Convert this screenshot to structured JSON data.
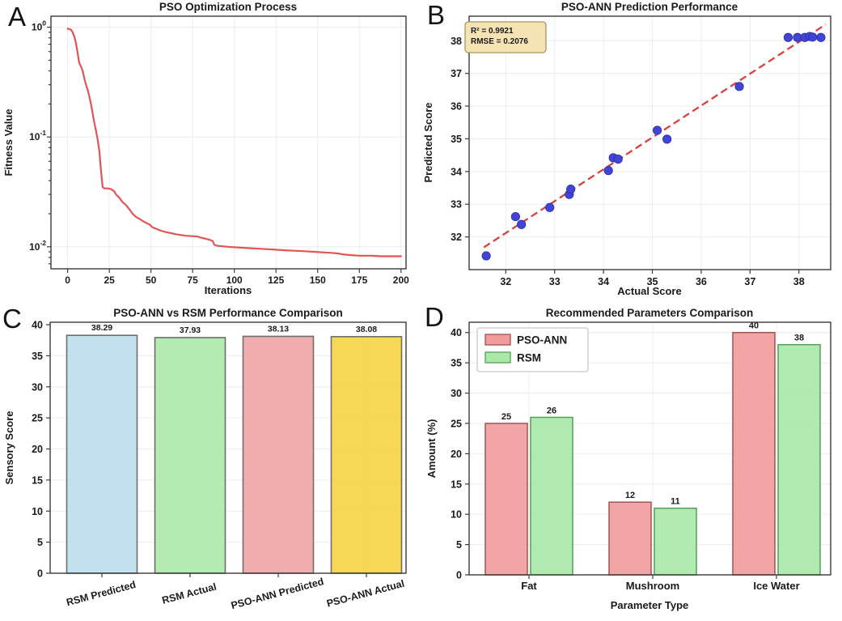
{
  "figure": {
    "background": "#ffffff",
    "panel_letters": [
      "A",
      "B",
      "C",
      "D"
    ]
  },
  "chart_data": [
    {
      "panel_letter": "A",
      "type": "line",
      "title": "PSO Optimization Process",
      "xlabel": "Iterations",
      "ylabel": "Fitness Value",
      "yscale": "log",
      "xlim": [
        -10,
        203
      ],
      "ylim": [
        0.0063,
        1.26
      ],
      "xticks": [
        0,
        25,
        50,
        75,
        100,
        125,
        150,
        175,
        200
      ],
      "yticks": [
        1,
        0.1,
        0.01
      ],
      "ytick_exponents": [
        "0",
        "-1",
        "-2"
      ],
      "line_color": "#e05555",
      "grid": true,
      "points": [
        [
          0,
          0.97
        ],
        [
          1,
          0.96
        ],
        [
          2,
          0.95
        ],
        [
          3,
          0.9
        ],
        [
          4,
          0.82
        ],
        [
          5,
          0.72
        ],
        [
          6,
          0.58
        ],
        [
          7,
          0.47
        ],
        [
          8,
          0.44
        ],
        [
          9,
          0.4
        ],
        [
          10,
          0.345
        ],
        [
          11,
          0.3
        ],
        [
          12,
          0.27
        ],
        [
          13,
          0.235
        ],
        [
          14,
          0.2
        ],
        [
          15,
          0.165
        ],
        [
          16,
          0.135
        ],
        [
          17,
          0.115
        ],
        [
          18,
          0.095
        ],
        [
          19,
          0.075
        ],
        [
          20,
          0.05
        ],
        [
          21,
          0.035
        ],
        [
          22,
          0.034
        ],
        [
          24,
          0.034
        ],
        [
          26,
          0.0335
        ],
        [
          28,
          0.032
        ],
        [
          29,
          0.03
        ],
        [
          31,
          0.028
        ],
        [
          33,
          0.0255
        ],
        [
          35,
          0.024
        ],
        [
          37,
          0.022
        ],
        [
          39,
          0.02
        ],
        [
          41,
          0.0187
        ],
        [
          43,
          0.018
        ],
        [
          45,
          0.0172
        ],
        [
          47,
          0.0165
        ],
        [
          49,
          0.016
        ],
        [
          51,
          0.015
        ],
        [
          53,
          0.0146
        ],
        [
          56,
          0.014
        ],
        [
          59,
          0.0136
        ],
        [
          62,
          0.0133
        ],
        [
          65,
          0.013
        ],
        [
          68,
          0.0128
        ],
        [
          71,
          0.0126
        ],
        [
          75,
          0.0125
        ],
        [
          78,
          0.0124
        ],
        [
          80,
          0.0121
        ],
        [
          83,
          0.0118
        ],
        [
          85,
          0.0116
        ],
        [
          87,
          0.0113
        ],
        [
          88,
          0.0104
        ],
        [
          90,
          0.0102
        ],
        [
          93,
          0.0101
        ],
        [
          96,
          0.01
        ],
        [
          100,
          0.0099
        ],
        [
          105,
          0.0098
        ],
        [
          110,
          0.0097
        ],
        [
          115,
          0.0096
        ],
        [
          120,
          0.0095
        ],
        [
          125,
          0.0094
        ],
        [
          130,
          0.0093
        ],
        [
          136,
          0.0092
        ],
        [
          142,
          0.0091
        ],
        [
          148,
          0.009
        ],
        [
          153,
          0.0089
        ],
        [
          158,
          0.0088
        ],
        [
          162,
          0.0087
        ],
        [
          166,
          0.0085
        ],
        [
          170,
          0.0084
        ],
        [
          175,
          0.0083
        ],
        [
          182,
          0.0083
        ],
        [
          188,
          0.0082
        ],
        [
          194,
          0.0082
        ],
        [
          200,
          0.0082
        ]
      ]
    },
    {
      "panel_letter": "B",
      "type": "scatter",
      "title": "PSO-ANN Prediction Performance",
      "xlabel": "Actual Score",
      "ylabel": "Predicted Score",
      "xlim": [
        31.25,
        38.65
      ],
      "ylim": [
        31.0,
        38.75
      ],
      "xticks": [
        32,
        33,
        34,
        35,
        36,
        37,
        38
      ],
      "yticks": [
        32,
        33,
        34,
        35,
        36,
        37,
        38
      ],
      "grid": true,
      "point_color": "#4144d4",
      "point_edge_color": "#2e31a8",
      "points": [
        [
          31.6,
          31.42
        ],
        [
          32.2,
          32.62
        ],
        [
          32.32,
          32.38
        ],
        [
          32.9,
          32.9
        ],
        [
          33.3,
          33.3
        ],
        [
          33.33,
          33.46
        ],
        [
          34.1,
          34.03
        ],
        [
          34.2,
          34.42
        ],
        [
          34.3,
          34.38
        ],
        [
          35.1,
          35.26
        ],
        [
          35.3,
          34.99
        ],
        [
          36.78,
          36.6
        ],
        [
          37.78,
          38.1
        ],
        [
          37.97,
          38.1
        ],
        [
          38.12,
          38.1
        ],
        [
          38.22,
          38.13
        ],
        [
          38.28,
          38.11
        ],
        [
          38.45,
          38.1
        ]
      ],
      "fit_line": {
        "x": [
          31.55,
          38.55
        ],
        "y": [
          31.68,
          38.5
        ],
        "color": "#d84040",
        "style": "dashed"
      },
      "annotation": {
        "lines": [
          "R² = 0.9921",
          "RMSE = 0.2076"
        ],
        "bg": "#f5e3b3",
        "border": "#a89468"
      },
      "stats": {
        "r_squared": 0.9921,
        "rmse": 0.2076
      }
    },
    {
      "panel_letter": "C",
      "type": "bar",
      "title": "PSO-ANN vs RSM Performance Comparison",
      "xlabel": "",
      "ylabel": "Sensory Score",
      "categories": [
        "RSM Predicted",
        "RSM Actual",
        "PSO-ANN Predicted",
        "PSO-ANN Actual"
      ],
      "values": [
        38.29,
        37.93,
        38.13,
        38.08
      ],
      "value_labels": [
        "38.29",
        "37.93",
        "38.13",
        "38.08"
      ],
      "bar_colors": [
        "#b9dcec",
        "#a9e8a9",
        "#f0a0a3",
        "#f6d23f"
      ],
      "bar_edge_color": "#6e6e6e",
      "ylim": [
        0,
        40.4
      ],
      "yticks": [
        0,
        5,
        10,
        15,
        20,
        25,
        30,
        35,
        40
      ],
      "xtick_rotation": -15,
      "grid": true
    },
    {
      "panel_letter": "D",
      "type": "grouped_bar",
      "title": "Recommended Parameters Comparison",
      "xlabel": "Parameter Type",
      "ylabel": "Amount (%)",
      "categories": [
        "Fat",
        "Mushroom",
        "Ice Water"
      ],
      "series": [
        {
          "name": "PSO-ANN",
          "color": "#f19b9b",
          "edge_color": "#a05454",
          "values": [
            25,
            12,
            40
          ]
        },
        {
          "name": "RSM",
          "color": "#a9e8a9",
          "edge_color": "#54a054",
          "values": [
            26,
            11,
            38
          ]
        }
      ],
      "value_labels": [
        [
          "25",
          "12",
          "40"
        ],
        [
          "26",
          "11",
          "38"
        ]
      ],
      "ylim": [
        0,
        41.7
      ],
      "yticks": [
        0,
        5,
        10,
        15,
        20,
        25,
        30,
        35,
        40
      ],
      "legend": {
        "position": "upper-left"
      },
      "grid": true
    }
  ]
}
